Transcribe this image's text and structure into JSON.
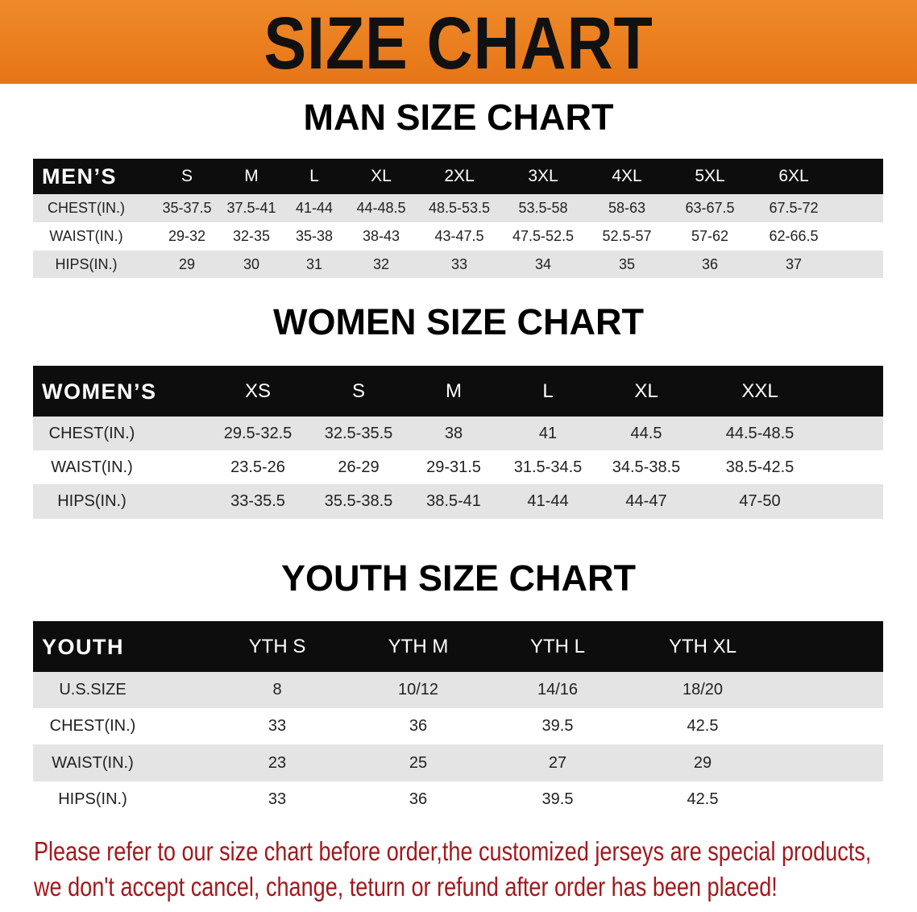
{
  "banner": {
    "title": "SIZE CHART",
    "color": "#e8781a"
  },
  "men": {
    "title": "MAN SIZE CHART",
    "header_label": "MEN’S",
    "sizes": [
      "S",
      "M",
      "L",
      "XL",
      "2XL",
      "3XL",
      "4XL",
      "5XL",
      "6XL"
    ],
    "rows": [
      {
        "label": "CHEST(IN.)",
        "values": [
          "35-37.5",
          "37.5-41",
          "41-44",
          "44-48.5",
          "48.5-53.5",
          "53.5-58",
          "58-63",
          "63-67.5",
          "67.5-72"
        ]
      },
      {
        "label": "WAIST(IN.)",
        "values": [
          "29-32",
          "32-35",
          "35-38",
          "38-43",
          "43-47.5",
          "47.5-52.5",
          "52.5-57",
          "57-62",
          "62-66.5"
        ]
      },
      {
        "label": "HIPS(IN.)",
        "values": [
          "29",
          "30",
          "31",
          "32",
          "33",
          "34",
          "35",
          "36",
          "37"
        ]
      }
    ]
  },
  "women": {
    "title": "WOMEN SIZE CHART",
    "header_label": "WOMEN’S",
    "sizes": [
      "XS",
      "S",
      "M",
      "L",
      "XL",
      "XXL"
    ],
    "rows": [
      {
        "label": "CHEST(IN.)",
        "values": [
          "29.5-32.5",
          "32.5-35.5",
          "38",
          "41",
          "44.5",
          "44.5-48.5"
        ]
      },
      {
        "label": "WAIST(IN.)",
        "values": [
          "23.5-26",
          "26-29",
          "29-31.5",
          "31.5-34.5",
          "34.5-38.5",
          "38.5-42.5"
        ]
      },
      {
        "label": "HIPS(IN.)",
        "values": [
          "33-35.5",
          "35.5-38.5",
          "38.5-41",
          "41-44",
          "44-47",
          "47-50"
        ]
      }
    ]
  },
  "youth": {
    "title": "YOUTH SIZE CHART",
    "header_label": "YOUTH",
    "sizes": [
      "YTH S",
      "YTH M",
      "YTH L",
      "YTH XL"
    ],
    "rows": [
      {
        "label": "U.S.SIZE",
        "values": [
          "8",
          "10/12",
          "14/16",
          "18/20"
        ]
      },
      {
        "label": "CHEST(IN.)",
        "values": [
          "33",
          "36",
          "39.5",
          "42.5"
        ]
      },
      {
        "label": "WAIST(IN.)",
        "values": [
          "23",
          "25",
          "27",
          "29"
        ]
      },
      {
        "label": "HIPS(IN.)",
        "values": [
          "33",
          "36",
          "39.5",
          "42.5"
        ]
      }
    ]
  },
  "notice": {
    "line1": "Please refer to our size chart before order,the customized jerseys are special products,",
    "line2": "we don't accept cancel, change, teturn or refund after order has been placed!",
    "color": "#a3181c"
  }
}
